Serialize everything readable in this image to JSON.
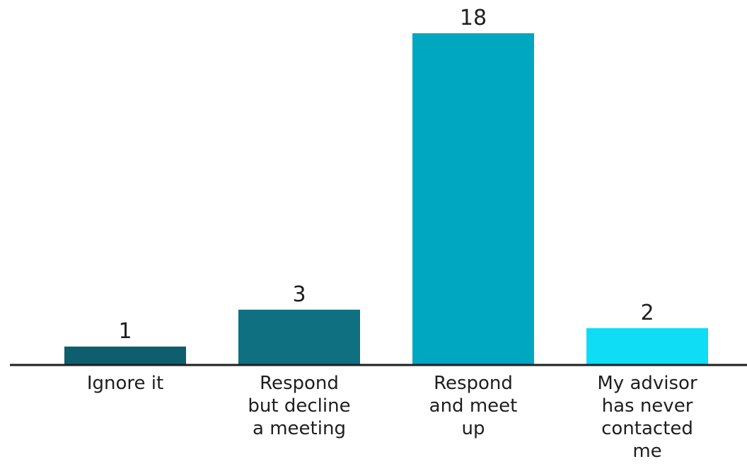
{
  "chart_data": {
    "type": "bar",
    "title": "",
    "xlabel": "",
    "ylabel": "",
    "categories": [
      [
        "Ignore it"
      ],
      [
        "Respond",
        "but decline",
        "a meeting"
      ],
      [
        "Respond",
        "and meet",
        "up"
      ],
      [
        "My advisor",
        "has never",
        "contacted",
        "me"
      ]
    ],
    "values": [
      1,
      3,
      18,
      2
    ],
    "colors": [
      "#0e5f6e",
      "#0e7080",
      "#00a7c0",
      "#0fddf6"
    ],
    "ylim": [
      0,
      18
    ],
    "grid": false,
    "data_labels": true
  }
}
